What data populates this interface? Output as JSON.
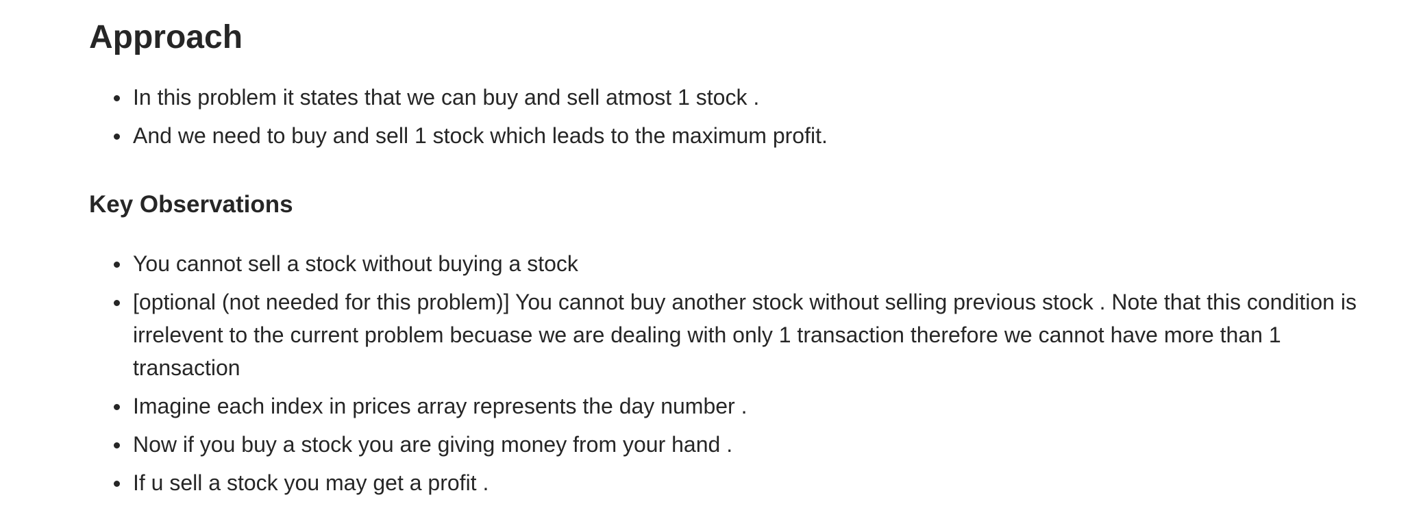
{
  "approach": {
    "heading": "Approach",
    "items": [
      "In this problem it states that we can buy and sell atmost 1 stock .",
      "And we need to buy and sell 1 stock which leads to the maximum profit."
    ]
  },
  "observations": {
    "heading": "Key Observations",
    "items": [
      "You cannot sell a stock without buying a stock",
      "[optional (not needed for this problem)] You cannot buy another stock without selling previous stock . Note that this condition is irrelevent to the current problem becuase we are dealing with only 1 transaction therefore we cannot have more than 1 transaction",
      "Imagine each index in prices array represents the day number .",
      "Now if you buy a stock you are giving money from your hand .",
      "If u sell a stock you may get a profit ."
    ]
  }
}
